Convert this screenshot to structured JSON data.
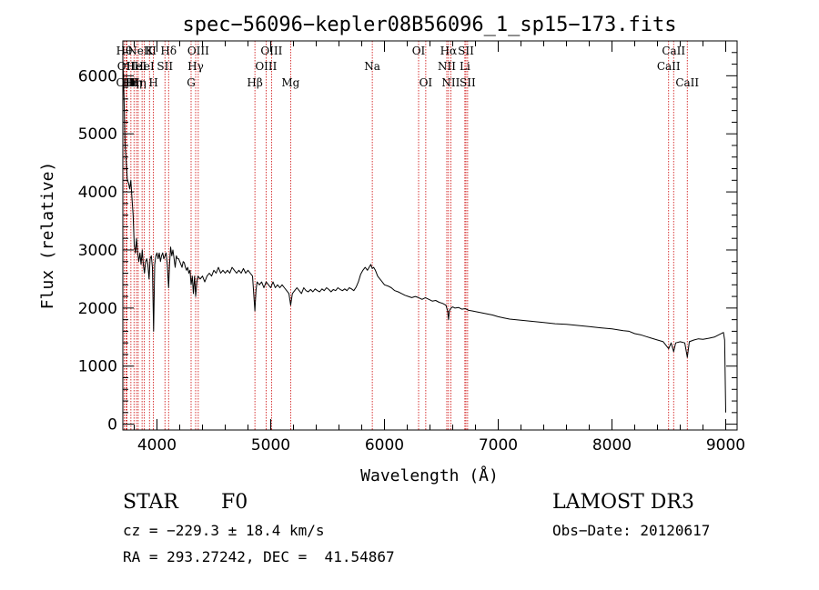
{
  "info": {
    "object_class": "STAR",
    "subclass": "F0",
    "survey": "LAMOST DR3",
    "redshift": "cz = −229.3 ± 18.4 km/s",
    "obs_date": "Obs−Date: 20120617",
    "coordinates": "RA = 293.27242, DEC =  41.54867"
  },
  "chart_data": {
    "type": "line",
    "title": "spec−56096−kepler08B56096_1_sp15−173.fits",
    "xlabel": "Wavelength (Å)",
    "ylabel": "Flux (relative)",
    "xlim": [
      3700,
      9100
    ],
    "ylim": [
      -100,
      6600
    ],
    "x_ticks": [
      4000,
      5000,
      6000,
      7000,
      8000,
      9000
    ],
    "y_ticks": [
      0,
      1000,
      2000,
      3000,
      4000,
      5000,
      6000
    ],
    "line_color": "#000000",
    "marker_color": "#cc0000",
    "series": [
      {
        "name": "flux",
        "points": [
          [
            3700,
            6300
          ],
          [
            3710,
            5600
          ],
          [
            3720,
            4800
          ],
          [
            3730,
            4500
          ],
          [
            3740,
            4200
          ],
          [
            3750,
            4150
          ],
          [
            3760,
            4050
          ],
          [
            3770,
            4200
          ],
          [
            3780,
            3900
          ],
          [
            3790,
            3600
          ],
          [
            3800,
            3100
          ],
          [
            3810,
            2950
          ],
          [
            3820,
            3200
          ],
          [
            3830,
            2950
          ],
          [
            3840,
            2800
          ],
          [
            3850,
            2950
          ],
          [
            3860,
            2750
          ],
          [
            3870,
            3000
          ],
          [
            3880,
            2750
          ],
          [
            3890,
            2600
          ],
          [
            3900,
            2800
          ],
          [
            3910,
            2850
          ],
          [
            3920,
            2750
          ],
          [
            3930,
            2500
          ],
          [
            3940,
            2850
          ],
          [
            3950,
            2900
          ],
          [
            3960,
            2700
          ],
          [
            3970,
            1600
          ],
          [
            3980,
            2750
          ],
          [
            3990,
            2900
          ],
          [
            4000,
            2950
          ],
          [
            4010,
            2850
          ],
          [
            4020,
            2950
          ],
          [
            4030,
            2800
          ],
          [
            4040,
            2900
          ],
          [
            4050,
            2950
          ],
          [
            4060,
            2850
          ],
          [
            4070,
            2900
          ],
          [
            4080,
            2950
          ],
          [
            4090,
            2750
          ],
          [
            4102,
            2350
          ],
          [
            4110,
            2750
          ],
          [
            4120,
            3050
          ],
          [
            4130,
            2900
          ],
          [
            4140,
            3000
          ],
          [
            4150,
            2850
          ],
          [
            4160,
            2700
          ],
          [
            4170,
            2900
          ],
          [
            4180,
            2850
          ],
          [
            4190,
            2850
          ],
          [
            4200,
            2800
          ],
          [
            4210,
            2750
          ],
          [
            4220,
            2700
          ],
          [
            4230,
            2800
          ],
          [
            4240,
            2780
          ],
          [
            4250,
            2700
          ],
          [
            4260,
            2650
          ],
          [
            4270,
            2700
          ],
          [
            4280,
            2600
          ],
          [
            4290,
            2650
          ],
          [
            4300,
            2400
          ],
          [
            4310,
            2550
          ],
          [
            4320,
            2250
          ],
          [
            4330,
            2550
          ],
          [
            4340,
            2200
          ],
          [
            4350,
            2450
          ],
          [
            4360,
            2550
          ],
          [
            4380,
            2500
          ],
          [
            4400,
            2550
          ],
          [
            4420,
            2450
          ],
          [
            4440,
            2550
          ],
          [
            4460,
            2600
          ],
          [
            4480,
            2550
          ],
          [
            4500,
            2650
          ],
          [
            4520,
            2600
          ],
          [
            4540,
            2700
          ],
          [
            4560,
            2600
          ],
          [
            4580,
            2650
          ],
          [
            4600,
            2600
          ],
          [
            4620,
            2650
          ],
          [
            4640,
            2600
          ],
          [
            4660,
            2700
          ],
          [
            4680,
            2650
          ],
          [
            4700,
            2600
          ],
          [
            4720,
            2650
          ],
          [
            4740,
            2600
          ],
          [
            4760,
            2680
          ],
          [
            4780,
            2600
          ],
          [
            4800,
            2650
          ],
          [
            4820,
            2600
          ],
          [
            4840,
            2550
          ],
          [
            4850,
            2250
          ],
          [
            4861,
            1950
          ],
          [
            4870,
            2300
          ],
          [
            4880,
            2450
          ],
          [
            4900,
            2400
          ],
          [
            4920,
            2450
          ],
          [
            4940,
            2350
          ],
          [
            4960,
            2450
          ],
          [
            4980,
            2400
          ],
          [
            5000,
            2350
          ],
          [
            5020,
            2450
          ],
          [
            5040,
            2350
          ],
          [
            5060,
            2400
          ],
          [
            5080,
            2350
          ],
          [
            5100,
            2400
          ],
          [
            5120,
            2350
          ],
          [
            5140,
            2300
          ],
          [
            5160,
            2250
          ],
          [
            5175,
            2050
          ],
          [
            5190,
            2250
          ],
          [
            5210,
            2300
          ],
          [
            5230,
            2350
          ],
          [
            5250,
            2300
          ],
          [
            5270,
            2250
          ],
          [
            5290,
            2350
          ],
          [
            5310,
            2300
          ],
          [
            5330,
            2280
          ],
          [
            5350,
            2320
          ],
          [
            5370,
            2280
          ],
          [
            5390,
            2330
          ],
          [
            5410,
            2300
          ],
          [
            5430,
            2280
          ],
          [
            5450,
            2330
          ],
          [
            5470,
            2300
          ],
          [
            5490,
            2350
          ],
          [
            5510,
            2320
          ],
          [
            5530,
            2280
          ],
          [
            5550,
            2320
          ],
          [
            5570,
            2300
          ],
          [
            5590,
            2350
          ],
          [
            5610,
            2320
          ],
          [
            5630,
            2300
          ],
          [
            5650,
            2330
          ],
          [
            5670,
            2300
          ],
          [
            5690,
            2350
          ],
          [
            5710,
            2330
          ],
          [
            5730,
            2300
          ],
          [
            5750,
            2360
          ],
          [
            5770,
            2450
          ],
          [
            5790,
            2580
          ],
          [
            5810,
            2650
          ],
          [
            5830,
            2700
          ],
          [
            5850,
            2650
          ],
          [
            5870,
            2720
          ],
          [
            5880,
            2750
          ],
          [
            5893,
            2680
          ],
          [
            5905,
            2700
          ],
          [
            5920,
            2650
          ],
          [
            5940,
            2550
          ],
          [
            5960,
            2500
          ],
          [
            5980,
            2450
          ],
          [
            6000,
            2400
          ],
          [
            6030,
            2380
          ],
          [
            6060,
            2350
          ],
          [
            6090,
            2300
          ],
          [
            6120,
            2280
          ],
          [
            6150,
            2250
          ],
          [
            6180,
            2220
          ],
          [
            6210,
            2200
          ],
          [
            6240,
            2180
          ],
          [
            6270,
            2200
          ],
          [
            6300,
            2180
          ],
          [
            6330,
            2150
          ],
          [
            6360,
            2180
          ],
          [
            6390,
            2150
          ],
          [
            6420,
            2120
          ],
          [
            6450,
            2130
          ],
          [
            6480,
            2100
          ],
          [
            6510,
            2080
          ],
          [
            6540,
            2050
          ],
          [
            6555,
            1950
          ],
          [
            6563,
            1800
          ],
          [
            6570,
            1950
          ],
          [
            6585,
            2000
          ],
          [
            6600,
            2020
          ],
          [
            6620,
            2000
          ],
          [
            6650,
            2010
          ],
          [
            6680,
            1980
          ],
          [
            6710,
            1990
          ],
          [
            6740,
            1960
          ],
          [
            6770,
            1950
          ],
          [
            6800,
            1940
          ],
          [
            6850,
            1920
          ],
          [
            6900,
            1900
          ],
          [
            6950,
            1880
          ],
          [
            7000,
            1850
          ],
          [
            7050,
            1830
          ],
          [
            7100,
            1810
          ],
          [
            7150,
            1800
          ],
          [
            7200,
            1790
          ],
          [
            7300,
            1770
          ],
          [
            7400,
            1750
          ],
          [
            7500,
            1730
          ],
          [
            7600,
            1720
          ],
          [
            7700,
            1700
          ],
          [
            7800,
            1680
          ],
          [
            7900,
            1660
          ],
          [
            8000,
            1640
          ],
          [
            8100,
            1610
          ],
          [
            8150,
            1600
          ],
          [
            8200,
            1560
          ],
          [
            8250,
            1540
          ],
          [
            8300,
            1510
          ],
          [
            8350,
            1480
          ],
          [
            8400,
            1450
          ],
          [
            8450,
            1420
          ],
          [
            8498,
            1300
          ],
          [
            8520,
            1400
          ],
          [
            8542,
            1250
          ],
          [
            8560,
            1400
          ],
          [
            8600,
            1420
          ],
          [
            8640,
            1400
          ],
          [
            8662,
            1150
          ],
          [
            8680,
            1420
          ],
          [
            8720,
            1450
          ],
          [
            8760,
            1470
          ],
          [
            8800,
            1460
          ],
          [
            8850,
            1480
          ],
          [
            8900,
            1500
          ],
          [
            8950,
            1550
          ],
          [
            8980,
            1580
          ],
          [
            8990,
            1450
          ],
          [
            9000,
            200
          ]
        ]
      }
    ],
    "line_markers": [
      {
        "wl": 3712,
        "label": "Hθ",
        "row": 0
      },
      {
        "wl": 3727,
        "label": "OII",
        "row": 1
      },
      {
        "wl": 3736,
        "label": "OIII",
        "row": 2
      },
      {
        "wl": 3771,
        "label": "Hη",
        "row": 2
      },
      {
        "wl": 3798,
        "label": "Hη",
        "row": 2
      },
      {
        "wl": 3820,
        "label": "HeI",
        "row": 1
      },
      {
        "wl": 3835,
        "label": "Hη",
        "row": 2
      },
      {
        "wl": 3869,
        "label": "NeIII",
        "row": 0
      },
      {
        "wl": 3889,
        "label": "HeI",
        "row": 1
      },
      {
        "wl": 3934,
        "label": "K",
        "row": 0
      },
      {
        "wl": 3969,
        "label": "H",
        "row": 2
      },
      {
        "wl": 4070,
        "label": "SII",
        "row": 1
      },
      {
        "wl": 4102,
        "label": "Hδ",
        "row": 0
      },
      {
        "wl": 4300,
        "label": "G",
        "row": 2
      },
      {
        "wl": 4340,
        "label": "Hγ",
        "row": 1
      },
      {
        "wl": 4363,
        "label": "OIII",
        "row": 0
      },
      {
        "wl": 4861,
        "label": "Hβ",
        "row": 2
      },
      {
        "wl": 4959,
        "label": "OIII",
        "row": 1
      },
      {
        "wl": 5007,
        "label": "OIII",
        "row": 0
      },
      {
        "wl": 5175,
        "label": "Mg",
        "row": 2
      },
      {
        "wl": 5893,
        "label": "Na",
        "row": 1
      },
      {
        "wl": 6300,
        "label": "OI",
        "row": 0
      },
      {
        "wl": 6363,
        "label": "OI",
        "row": 2
      },
      {
        "wl": 6548,
        "label": "NII",
        "row": 1
      },
      {
        "wl": 6563,
        "label": "Hα",
        "row": 0
      },
      {
        "wl": 6583,
        "label": "NII",
        "row": 2
      },
      {
        "wl": 6707,
        "label": "Li",
        "row": 1
      },
      {
        "wl": 6716,
        "label": "SII",
        "row": 0
      },
      {
        "wl": 6731,
        "label": "SII",
        "row": 2
      },
      {
        "wl": 8498,
        "label": "CaII",
        "row": 1
      },
      {
        "wl": 8542,
        "label": "CaII",
        "row": 0
      },
      {
        "wl": 8662,
        "label": "CaII",
        "row": 2
      }
    ]
  }
}
